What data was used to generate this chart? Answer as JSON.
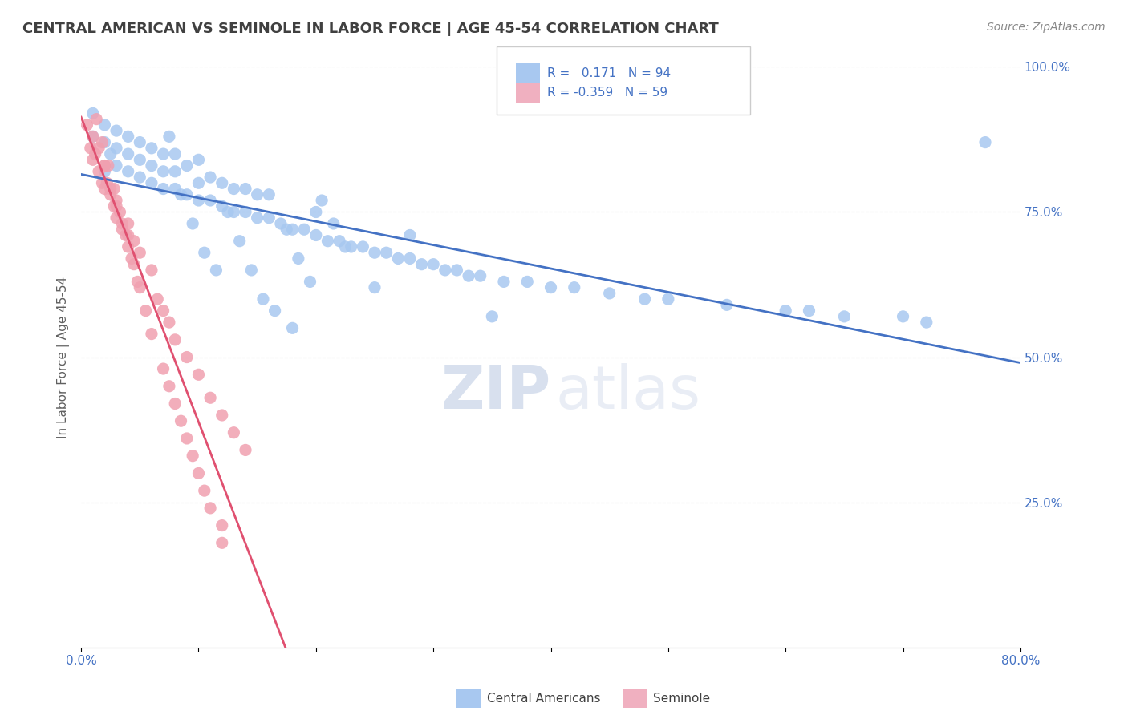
{
  "title": "CENTRAL AMERICAN VS SEMINOLE IN LABOR FORCE | AGE 45-54 CORRELATION CHART",
  "source_text": "Source: ZipAtlas.com",
  "ylabel": "In Labor Force | Age 45-54",
  "xmin": 0.0,
  "xmax": 0.8,
  "ymin": 0.0,
  "ymax": 1.0,
  "r_blue": 0.171,
  "n_blue": 94,
  "r_pink": -0.359,
  "n_pink": 59,
  "yticks": [
    0.25,
    0.5,
    0.75,
    1.0
  ],
  "ytick_labels": [
    "25.0%",
    "50.0%",
    "75.0%",
    "100.0%"
  ],
  "xticks": [
    0.0,
    0.1,
    0.2,
    0.3,
    0.4,
    0.5,
    0.6,
    0.7,
    0.8
  ],
  "blue_scatter_color": "#a8c8f0",
  "pink_scatter_color": "#f0a0b0",
  "blue_line_color": "#4472c4",
  "pink_line_color": "#e05070",
  "dashed_line_color": "#c0c0c0",
  "title_color": "#404040",
  "axis_color": "#4472c4",
  "legend_box_blue": "#a8c8f0",
  "legend_box_pink": "#f0b0c0",
  "watermark_zip_color": "#c8d4e8",
  "watermark_atlas_color": "#c8d4e8",
  "background_color": "#ffffff",
  "pink_solid_xend": 0.35,
  "blue_points_x": [
    0.01,
    0.01,
    0.02,
    0.02,
    0.02,
    0.025,
    0.03,
    0.03,
    0.03,
    0.04,
    0.04,
    0.04,
    0.05,
    0.05,
    0.05,
    0.06,
    0.06,
    0.06,
    0.07,
    0.07,
    0.07,
    0.08,
    0.08,
    0.08,
    0.09,
    0.09,
    0.1,
    0.1,
    0.1,
    0.11,
    0.11,
    0.12,
    0.12,
    0.13,
    0.13,
    0.14,
    0.14,
    0.15,
    0.15,
    0.16,
    0.16,
    0.17,
    0.18,
    0.19,
    0.2,
    0.2,
    0.21,
    0.22,
    0.23,
    0.24,
    0.25,
    0.26,
    0.27,
    0.28,
    0.28,
    0.29,
    0.3,
    0.31,
    0.32,
    0.33,
    0.34,
    0.36,
    0.38,
    0.4,
    0.42,
    0.45,
    0.48,
    0.5,
    0.55,
    0.6,
    0.62,
    0.65,
    0.7,
    0.72,
    0.075,
    0.085,
    0.095,
    0.105,
    0.115,
    0.125,
    0.135,
    0.145,
    0.155,
    0.165,
    0.175,
    0.185,
    0.195,
    0.205,
    0.215,
    0.225,
    0.18,
    0.25,
    0.35,
    0.77
  ],
  "blue_points_y": [
    0.88,
    0.92,
    0.82,
    0.87,
    0.9,
    0.85,
    0.83,
    0.86,
    0.89,
    0.82,
    0.85,
    0.88,
    0.81,
    0.84,
    0.87,
    0.8,
    0.83,
    0.86,
    0.79,
    0.82,
    0.85,
    0.79,
    0.82,
    0.85,
    0.78,
    0.83,
    0.77,
    0.8,
    0.84,
    0.77,
    0.81,
    0.76,
    0.8,
    0.75,
    0.79,
    0.75,
    0.79,
    0.74,
    0.78,
    0.74,
    0.78,
    0.73,
    0.72,
    0.72,
    0.71,
    0.75,
    0.7,
    0.7,
    0.69,
    0.69,
    0.68,
    0.68,
    0.67,
    0.67,
    0.71,
    0.66,
    0.66,
    0.65,
    0.65,
    0.64,
    0.64,
    0.63,
    0.63,
    0.62,
    0.62,
    0.61,
    0.6,
    0.6,
    0.59,
    0.58,
    0.58,
    0.57,
    0.57,
    0.56,
    0.88,
    0.78,
    0.73,
    0.68,
    0.65,
    0.75,
    0.7,
    0.65,
    0.6,
    0.58,
    0.72,
    0.67,
    0.63,
    0.77,
    0.73,
    0.69,
    0.55,
    0.62,
    0.57,
    0.87
  ],
  "pink_points_x": [
    0.005,
    0.008,
    0.01,
    0.01,
    0.012,
    0.015,
    0.018,
    0.02,
    0.02,
    0.022,
    0.025,
    0.028,
    0.03,
    0.03,
    0.035,
    0.04,
    0.04,
    0.045,
    0.05,
    0.06,
    0.065,
    0.07,
    0.075,
    0.08,
    0.09,
    0.1,
    0.11,
    0.12,
    0.13,
    0.14,
    0.015,
    0.02,
    0.025,
    0.03,
    0.035,
    0.04,
    0.045,
    0.05,
    0.055,
    0.06,
    0.07,
    0.075,
    0.08,
    0.085,
    0.09,
    0.095,
    0.1,
    0.105,
    0.11,
    0.12,
    0.013,
    0.018,
    0.023,
    0.028,
    0.033,
    0.038,
    0.043,
    0.048,
    0.12
  ],
  "pink_points_y": [
    0.9,
    0.86,
    0.88,
    0.84,
    0.85,
    0.82,
    0.8,
    0.83,
    0.79,
    0.8,
    0.78,
    0.76,
    0.77,
    0.74,
    0.73,
    0.71,
    0.73,
    0.7,
    0.68,
    0.65,
    0.6,
    0.58,
    0.56,
    0.53,
    0.5,
    0.47,
    0.43,
    0.4,
    0.37,
    0.34,
    0.86,
    0.83,
    0.79,
    0.76,
    0.72,
    0.69,
    0.66,
    0.62,
    0.58,
    0.54,
    0.48,
    0.45,
    0.42,
    0.39,
    0.36,
    0.33,
    0.3,
    0.27,
    0.24,
    0.21,
    0.91,
    0.87,
    0.83,
    0.79,
    0.75,
    0.71,
    0.67,
    0.63,
    0.18
  ]
}
